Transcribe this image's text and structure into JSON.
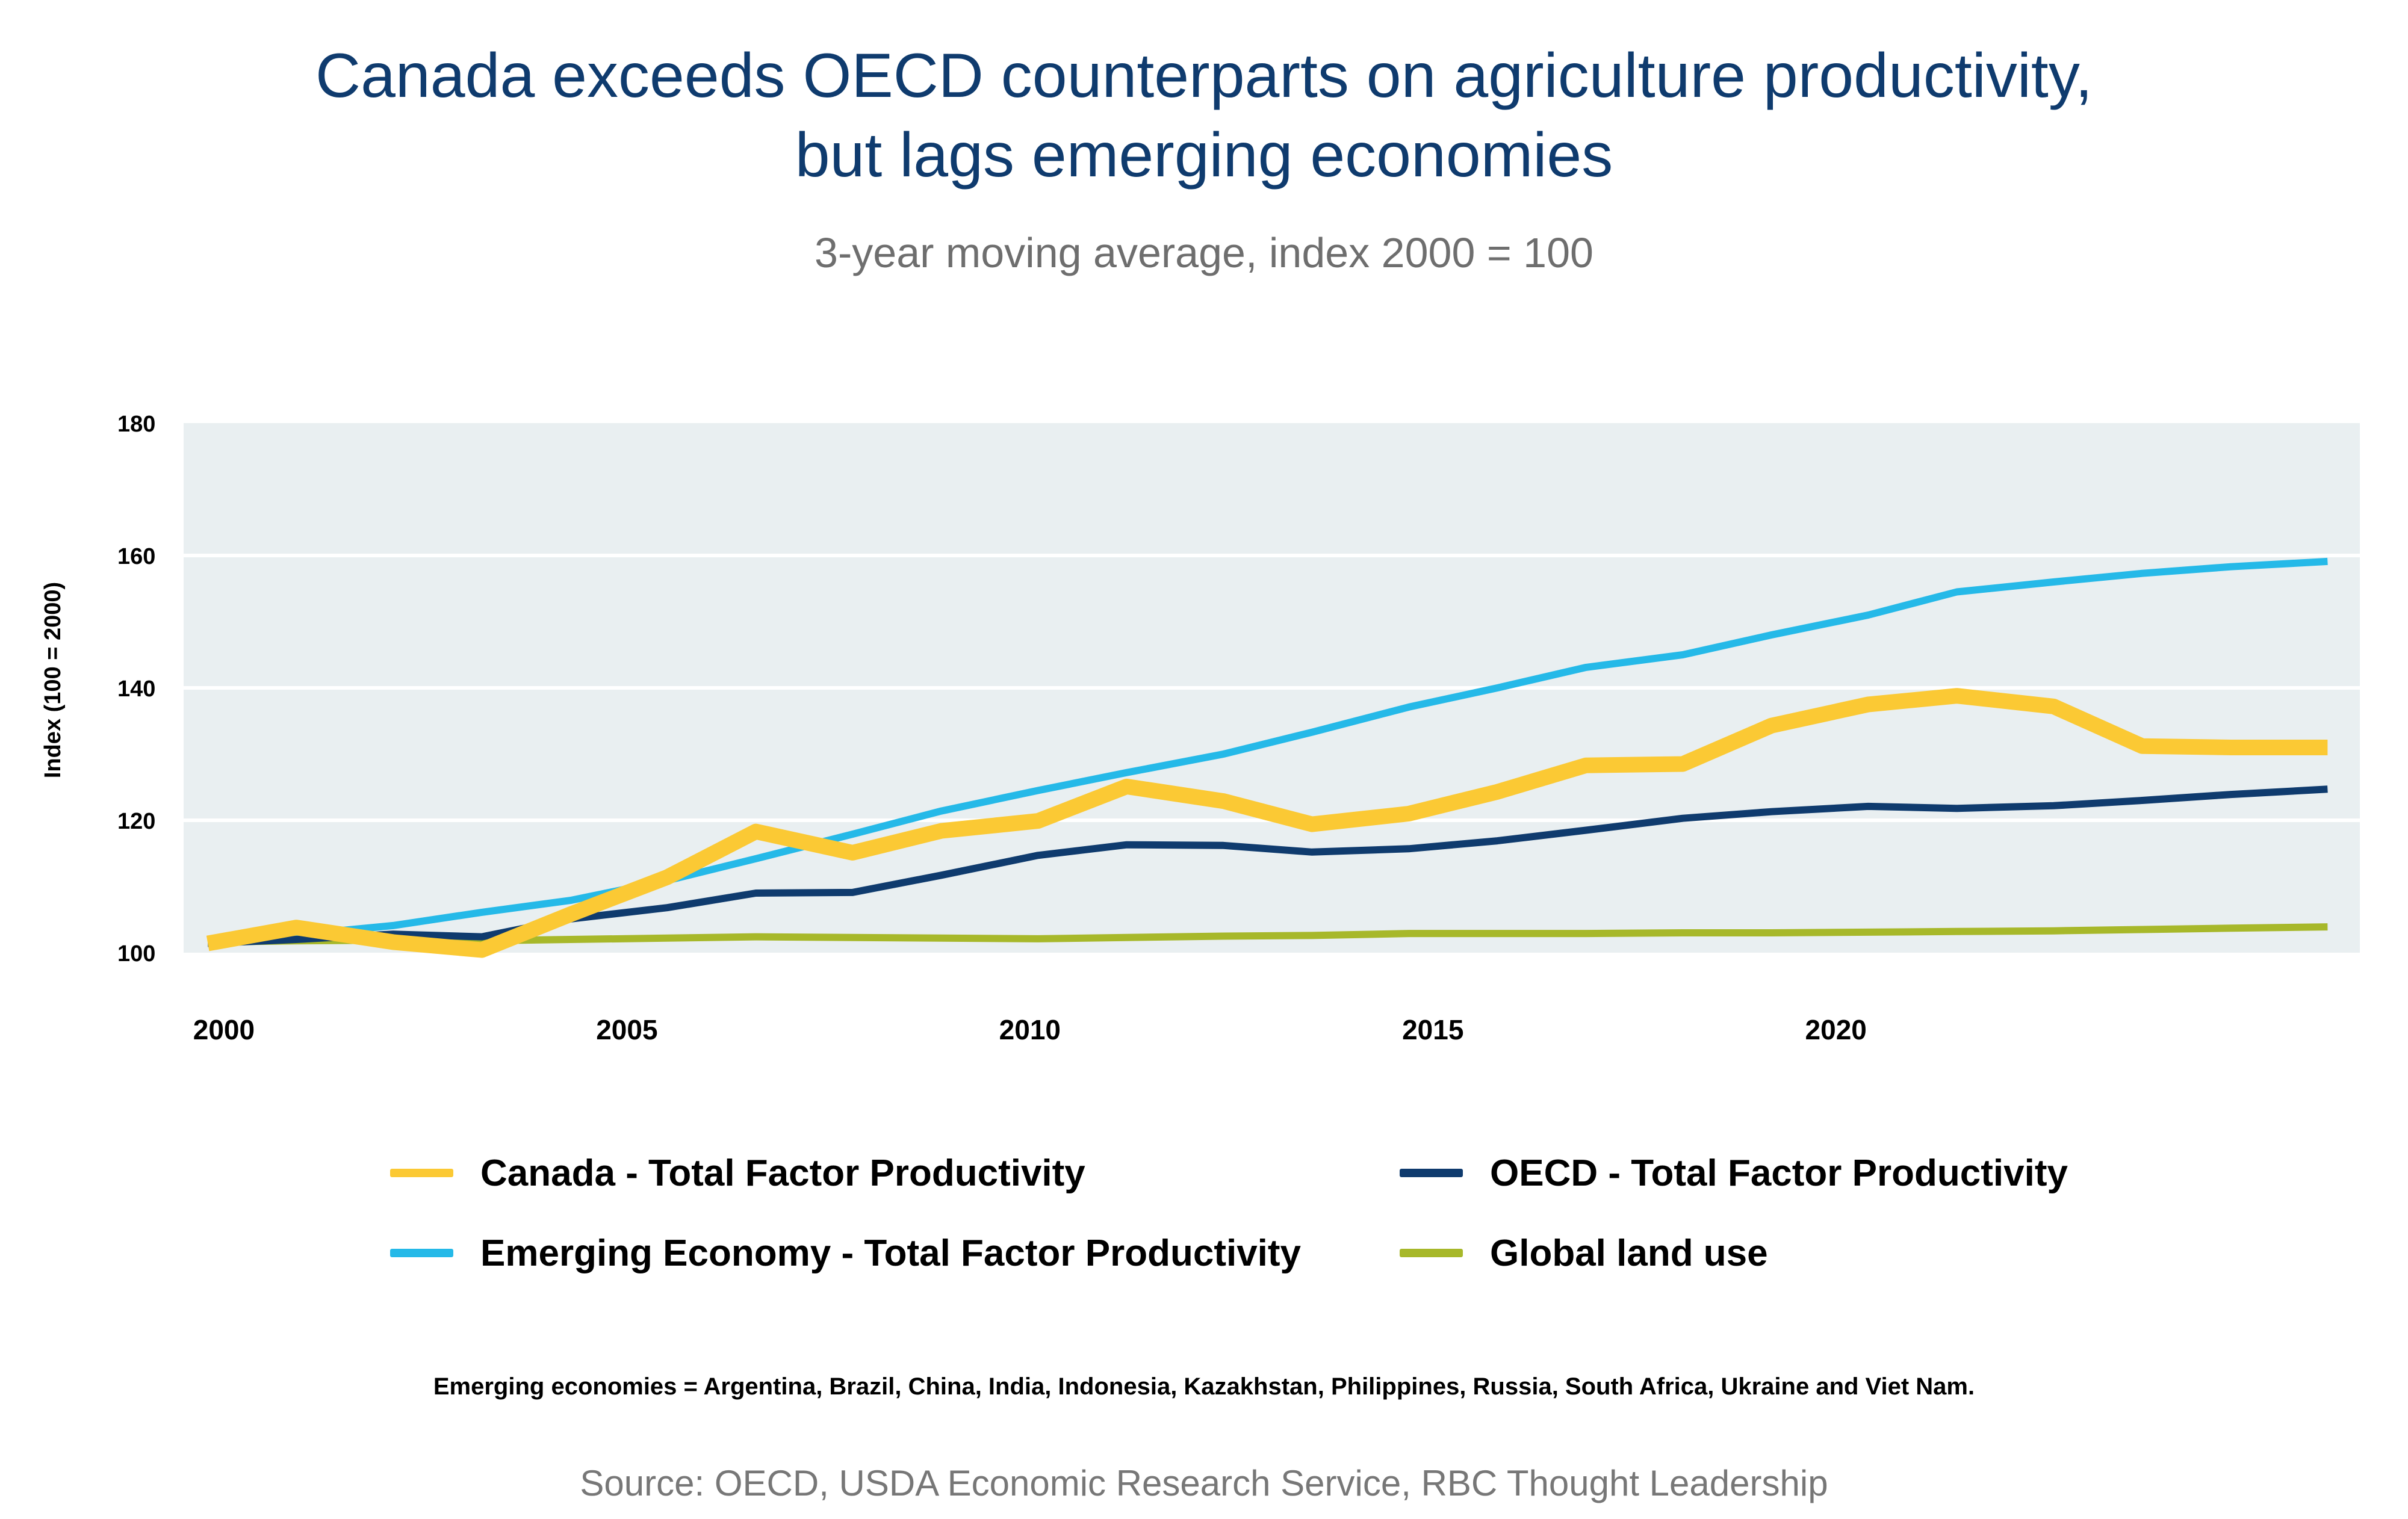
{
  "title_line1": "Canada exceeds OECD counterparts on agriculture productivity,",
  "title_line2": "but lags emerging economies",
  "subtitle": "3-year moving average, index 2000 = 100",
  "note": "Emerging economies = Argentina, Brazil, China, India, Indonesia, Kazakhstan, Philippines, Russia, South Africa, Ukraine and Viet Nam.",
  "source": "Source: OECD, USDA Economic Research Service, RBC Thought Leadership",
  "colors": {
    "plot_background": "#e9eff1",
    "gridline": "#ffffff",
    "canada": "#fbc934",
    "oecd": "#0f3b6e",
    "emerging": "#25b9e8",
    "land": "#a7b82a"
  },
  "chart_data": {
    "type": "line",
    "ylabel": "Index (100 = 2000)",
    "ylim": [
      100,
      180
    ],
    "yticks": [
      100,
      120,
      140,
      160,
      180
    ],
    "xlim": [
      1999.5,
      2026.5
    ],
    "xticks": [
      2000,
      2005,
      2010,
      2015,
      2020
    ],
    "grid": true,
    "legend_position": "bottom",
    "x": [
      1999.8,
      2000.9,
      2002.1,
      2003.2,
      2004.3,
      2005.5,
      2006.6,
      2007.8,
      2008.9,
      2010.1,
      2011.2,
      2012.4,
      2013.5,
      2014.7,
      2015.8,
      2016.9,
      2018.1,
      2019.2,
      2020.4,
      2021.5,
      2022.7,
      2023.8,
      2024.9,
      2026.1
    ],
    "series": [
      {
        "name": "Canada - Total Factor Productivity",
        "color_key": "canada",
        "stroke": "thick",
        "values": [
          101.4,
          103.8,
          101.6,
          100.4,
          105.8,
          111.4,
          118.3,
          115.1,
          118.4,
          119.9,
          125.1,
          122.9,
          119.4,
          121.0,
          124.3,
          128.3,
          128.5,
          134.3,
          137.5,
          138.8,
          137.2,
          131.2,
          131.0,
          131.0
        ]
      },
      {
        "name": "OECD - Total Factor Productivity",
        "color_key": "oecd",
        "stroke": "normal",
        "values": [
          101.4,
          102.0,
          102.8,
          102.4,
          105.1,
          106.8,
          109.0,
          109.1,
          111.7,
          114.7,
          116.3,
          116.2,
          115.2,
          115.7,
          116.9,
          118.5,
          120.3,
          121.3,
          122.1,
          121.8,
          122.2,
          123.0,
          123.9,
          124.7
        ]
      },
      {
        "name": "Emerging Economy - Total Factor Productivity",
        "color_key": "emerging",
        "stroke": "normal",
        "values": [
          101.7,
          102.7,
          104.1,
          106.1,
          107.9,
          110.9,
          114.2,
          117.9,
          121.4,
          124.5,
          127.2,
          130.0,
          133.3,
          137.1,
          140.0,
          143.1,
          145.0,
          148.0,
          151.0,
          154.5,
          156.0,
          157.3,
          158.3,
          159.1
        ]
      },
      {
        "name": "Global land use",
        "color_key": "land",
        "stroke": "normal",
        "values": [
          101.6,
          101.8,
          101.9,
          101.8,
          102.0,
          102.2,
          102.4,
          102.3,
          102.2,
          102.1,
          102.3,
          102.5,
          102.6,
          102.9,
          102.9,
          102.9,
          103.0,
          103.0,
          103.1,
          103.2,
          103.3,
          103.5,
          103.7,
          103.9
        ]
      }
    ]
  }
}
